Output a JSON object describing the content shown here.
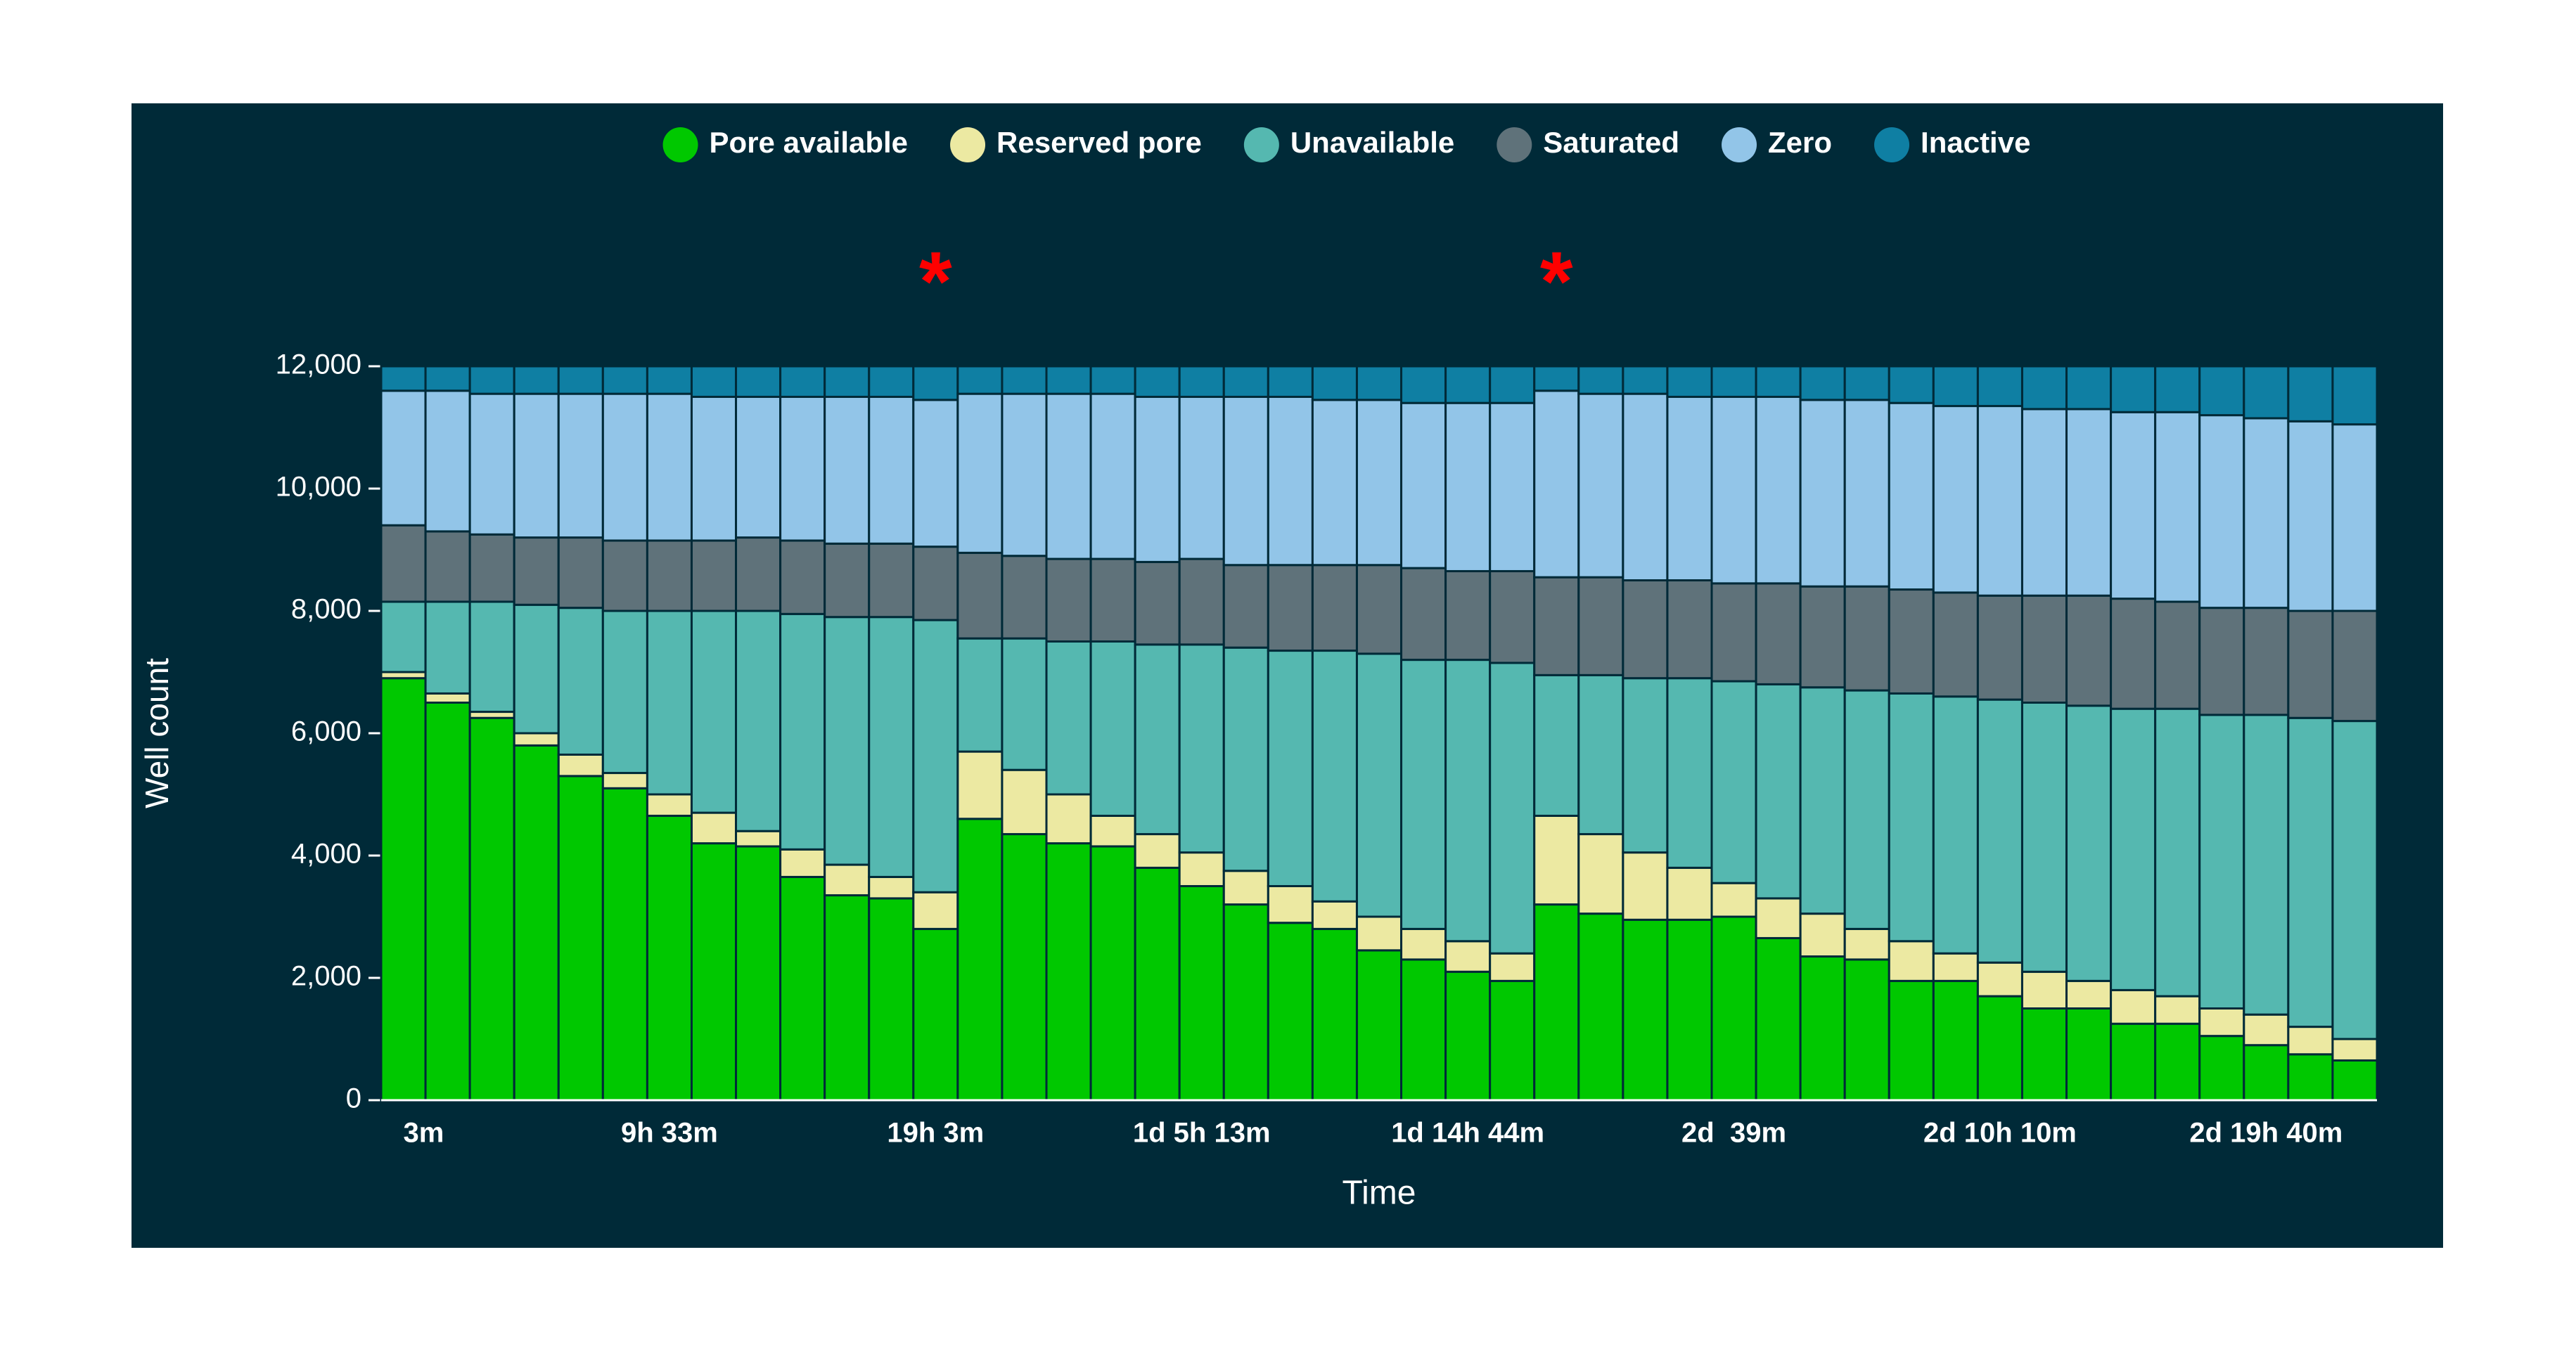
{
  "chart_data": {
    "type": "stacked_bar",
    "x_label": "Time",
    "y_label": "Well count",
    "annotations": [
      "*",
      "*"
    ],
    "categories": [
      "3m",
      null,
      null,
      null,
      null,
      null,
      "9h 33m",
      null,
      null,
      null,
      null,
      null,
      "19h 3m",
      null,
      null,
      null,
      null,
      null,
      "1d 5h 13m",
      null,
      null,
      null,
      null,
      null,
      "1d 14h 44m",
      null,
      null,
      null,
      null,
      null,
      "2d  39m",
      null,
      null,
      null,
      null,
      null,
      "2d 10h 10m",
      null,
      null,
      null,
      null,
      null,
      "2d 19h 40m",
      null,
      null
    ],
    "ylim": [
      0,
      12000
    ],
    "yticks": [
      0,
      {
        "value": 2000,
        "label": "2,000"
      },
      {
        "value": 4000,
        "label": "4,000"
      },
      {
        "value": 6000,
        "label": "6,000"
      },
      {
        "value": 8000,
        "label": "8,000"
      },
      {
        "value": 10000,
        "label": "10,000"
      },
      {
        "value": 12000,
        "label": "12,000"
      }
    ],
    "series": [
      {
        "name": "Pore available",
        "color": "#00c800",
        "values": [
          6900,
          6500,
          6250,
          5800,
          5300,
          5100,
          4650,
          4200,
          4150,
          3650,
          3350,
          3300,
          2800,
          4600,
          4350,
          4200,
          4150,
          3800,
          3500,
          3200,
          2900,
          2800,
          2450,
          2300,
          2100,
          1950,
          3200,
          3050,
          2950,
          2950,
          3000,
          2650,
          2350,
          2300,
          1950,
          1950,
          1700,
          1500,
          1500,
          1250,
          1250,
          1050,
          900,
          750,
          650
        ]
      },
      {
        "name": "Reserved pore",
        "color": "#ece9a2",
        "values": [
          100,
          150,
          100,
          200,
          350,
          250,
          350,
          500,
          250,
          450,
          500,
          350,
          600,
          1100,
          1050,
          800,
          500,
          550,
          550,
          550,
          600,
          450,
          550,
          500,
          500,
          450,
          1450,
          1300,
          1100,
          850,
          550,
          650,
          700,
          500,
          650,
          450,
          550,
          600,
          450,
          550,
          450,
          450,
          500,
          450,
          350
        ]
      },
      {
        "name": "Unavailable",
        "color": "#55b8b0",
        "values": [
          1150,
          1500,
          1800,
          2100,
          2400,
          2650,
          3000,
          3300,
          3600,
          3850,
          4050,
          4250,
          4450,
          1850,
          2150,
          2500,
          2850,
          3100,
          3400,
          3650,
          3850,
          4100,
          4300,
          4400,
          4600,
          4750,
          2300,
          2600,
          2850,
          3100,
          3300,
          3500,
          3700,
          3900,
          4050,
          4200,
          4300,
          4400,
          4500,
          4600,
          4700,
          4800,
          4900,
          5050,
          5200
        ]
      },
      {
        "name": "Saturated",
        "color": "#5f727a",
        "values": [
          1250,
          1150,
          1100,
          1100,
          1150,
          1150,
          1150,
          1150,
          1200,
          1200,
          1200,
          1200,
          1200,
          1400,
          1350,
          1350,
          1350,
          1350,
          1400,
          1350,
          1400,
          1400,
          1450,
          1500,
          1450,
          1500,
          1600,
          1600,
          1600,
          1600,
          1600,
          1650,
          1650,
          1700,
          1700,
          1700,
          1700,
          1750,
          1800,
          1800,
          1750,
          1750,
          1750,
          1750,
          1800
        ]
      },
      {
        "name": "Zero",
        "color": "#92c5e8",
        "values": [
          2200,
          2300,
          2300,
          2350,
          2350,
          2400,
          2400,
          2350,
          2300,
          2350,
          2400,
          2400,
          2400,
          2600,
          2650,
          2700,
          2700,
          2700,
          2650,
          2750,
          2750,
          2700,
          2700,
          2700,
          2750,
          2750,
          3050,
          3000,
          3050,
          3000,
          3050,
          3050,
          3050,
          3050,
          3050,
          3050,
          3100,
          3050,
          3050,
          3050,
          3100,
          3150,
          3100,
          3100,
          3050
        ]
      },
      {
        "name": "Inactive",
        "color": "#0f7fa3",
        "values": [
          400,
          400,
          450,
          450,
          450,
          450,
          450,
          500,
          500,
          500,
          500,
          500,
          550,
          450,
          450,
          450,
          450,
          500,
          500,
          500,
          500,
          550,
          550,
          600,
          600,
          600,
          400,
          450,
          450,
          500,
          500,
          500,
          550,
          550,
          600,
          650,
          650,
          700,
          700,
          750,
          750,
          800,
          850,
          900,
          950
        ]
      }
    ]
  }
}
